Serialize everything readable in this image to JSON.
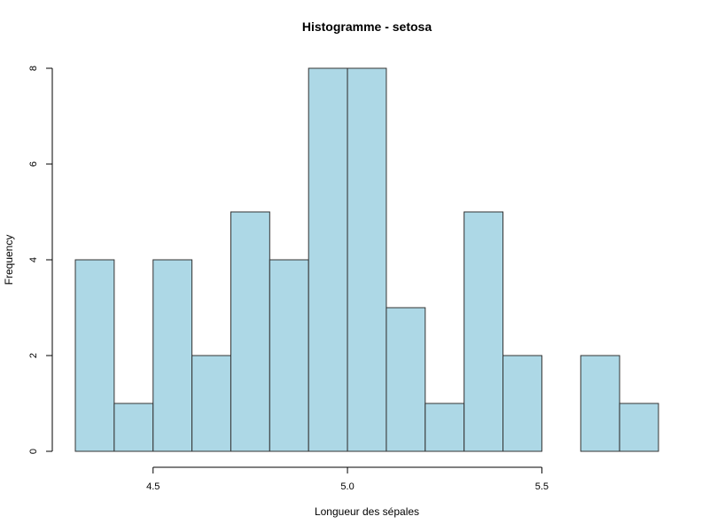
{
  "chart_data": {
    "type": "bar",
    "title": "Histogramme - setosa",
    "xlabel": "Longueur des sépales",
    "ylabel": "Frequency",
    "bin_edges": [
      4.3,
      4.4,
      4.5,
      4.6,
      4.7,
      4.8,
      4.9,
      5.0,
      5.1,
      5.2,
      5.3,
      5.4,
      5.5,
      5.6,
      5.7,
      5.8
    ],
    "values": [
      4,
      1,
      4,
      2,
      5,
      4,
      8,
      8,
      3,
      1,
      5,
      2,
      0,
      2,
      1
    ],
    "xticks": [
      4.5,
      5.0,
      5.5
    ],
    "xtick_labels": [
      "4.5",
      "5.0",
      "5.5"
    ],
    "yticks": [
      0,
      2,
      4,
      6,
      8
    ],
    "ytick_labels": [
      "0",
      "2",
      "4",
      "6",
      "8"
    ],
    "xlim": [
      4.3,
      5.8
    ],
    "ylim": [
      0,
      8
    ],
    "bar_color": "#add8e6",
    "grid": false
  }
}
